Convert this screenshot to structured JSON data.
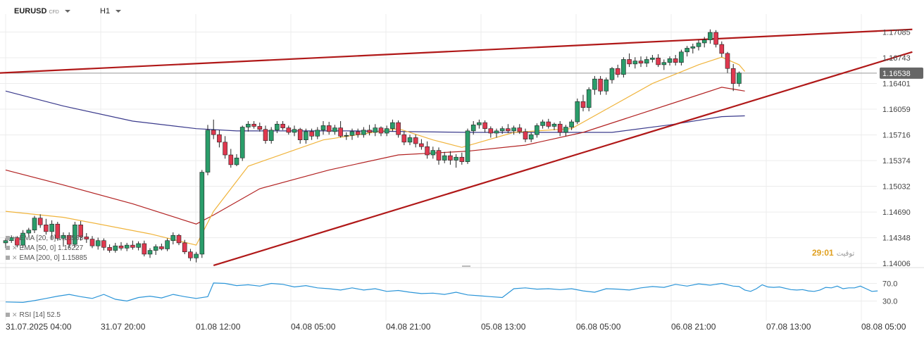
{
  "header": {
    "symbol": "EURUSD",
    "type": "CFD",
    "timeframe": "H1"
  },
  "indicators": [
    {
      "label": "EMA [20, 0] 1.16563",
      "color": "#f0b43c"
    },
    {
      "label": "EMA [50, 0] 1.16227",
      "color": "#b22222"
    },
    {
      "label": "EMA [200, 0] 1.15885",
      "color": "#3a3a8c"
    }
  ],
  "rsi_label": "RSI [14] 52.5",
  "session": {
    "value": "29",
    "sep": ":",
    "value2": "01",
    "suffix": "توقيت"
  },
  "colors": {
    "up": "#2a9d6a",
    "down": "#e0384f",
    "trend": "#b01818",
    "rsi": "#2b95d8",
    "grid": "#ececec"
  },
  "chart_data": {
    "type": "candlestick",
    "price_axis": {
      "ticks": [
        "1.17085",
        "1.16743",
        "1.16401",
        "1.16059",
        "1.15716",
        "1.15374",
        "1.15032",
        "1.14690",
        "1.14348",
        "1.14006"
      ],
      "range": [
        1.1397,
        1.1723
      ]
    },
    "current_price": "1.16538",
    "rsi_axis": {
      "ticks": [
        "70.0",
        "30.0"
      ],
      "range": [
        10,
        90
      ]
    },
    "time_labels": [
      "31.07.2025  04:00",
      "31.07  20:00",
      "01.08  12:00",
      "04.08  05:00",
      "04.08  21:00",
      "05.08  13:00",
      "06.08  05:00",
      "06.08  21:00",
      "07.08  13:00",
      "08.08  05:00"
    ],
    "candles": [
      [
        1.1428,
        1.1434,
        1.1421,
        1.1431
      ],
      [
        1.1431,
        1.1438,
        1.1428,
        1.1435
      ],
      [
        1.1435,
        1.1437,
        1.1422,
        1.1425
      ],
      [
        1.1425,
        1.1445,
        1.1421,
        1.1441
      ],
      [
        1.1441,
        1.1448,
        1.1438,
        1.1445
      ],
      [
        1.1445,
        1.1464,
        1.1441,
        1.1461
      ],
      [
        1.1461,
        1.1466,
        1.1448,
        1.1452
      ],
      [
        1.1452,
        1.146,
        1.1439,
        1.1443
      ],
      [
        1.1443,
        1.1458,
        1.1433,
        1.1453
      ],
      [
        1.1453,
        1.1456,
        1.1431,
        1.1434
      ],
      [
        1.1434,
        1.1442,
        1.1423,
        1.1438
      ],
      [
        1.1438,
        1.1442,
        1.1421,
        1.1426
      ],
      [
        1.1426,
        1.1456,
        1.1422,
        1.1452
      ],
      [
        1.1452,
        1.1457,
        1.1431,
        1.1436
      ],
      [
        1.1436,
        1.1441,
        1.1428,
        1.1433
      ],
      [
        1.1433,
        1.1437,
        1.1421,
        1.1424
      ],
      [
        1.1424,
        1.1435,
        1.1419,
        1.1431
      ],
      [
        1.1431,
        1.1434,
        1.1418,
        1.1422
      ],
      [
        1.1422,
        1.1426,
        1.1415,
        1.1418
      ],
      [
        1.1418,
        1.1428,
        1.1415,
        1.1424
      ],
      [
        1.1424,
        1.1429,
        1.1418,
        1.1421
      ],
      [
        1.1421,
        1.1428,
        1.1417,
        1.1425
      ],
      [
        1.1425,
        1.1431,
        1.1419,
        1.1422
      ],
      [
        1.1422,
        1.143,
        1.1418,
        1.1427
      ],
      [
        1.1427,
        1.1431,
        1.141,
        1.1413
      ],
      [
        1.1413,
        1.1421,
        1.1408,
        1.1418
      ],
      [
        1.1418,
        1.1426,
        1.1412,
        1.1423
      ],
      [
        1.1423,
        1.1427,
        1.1418,
        1.142
      ],
      [
        1.142,
        1.1434,
        1.1417,
        1.1431
      ],
      [
        1.1431,
        1.1442,
        1.1426,
        1.1438
      ],
      [
        1.1438,
        1.144,
        1.1425,
        1.1428
      ],
      [
        1.1428,
        1.1432,
        1.1413,
        1.1416
      ],
      [
        1.1416,
        1.142,
        1.1404,
        1.1408
      ],
      [
        1.1408,
        1.1416,
        1.1402,
        1.1413
      ],
      [
        1.1413,
        1.1525,
        1.1408,
        1.1522
      ],
      [
        1.1522,
        1.1585,
        1.1518,
        1.1578
      ],
      [
        1.1578,
        1.1592,
        1.1566,
        1.1572
      ],
      [
        1.1572,
        1.1578,
        1.1555,
        1.1562
      ],
      [
        1.1562,
        1.157,
        1.154,
        1.1545
      ],
      [
        1.1545,
        1.1553,
        1.1528,
        1.1532
      ],
      [
        1.1532,
        1.1546,
        1.153,
        1.1541
      ],
      [
        1.1541,
        1.1584,
        1.1537,
        1.1582
      ],
      [
        1.1582,
        1.159,
        1.1576,
        1.1586
      ],
      [
        1.1586,
        1.159,
        1.158,
        1.1583
      ],
      [
        1.1583,
        1.1588,
        1.1576,
        1.1579
      ],
      [
        1.1579,
        1.1584,
        1.156,
        1.1564
      ],
      [
        1.1564,
        1.1582,
        1.156,
        1.1578
      ],
      [
        1.1578,
        1.159,
        1.1574,
        1.1586
      ],
      [
        1.1586,
        1.159,
        1.1578,
        1.1581
      ],
      [
        1.1581,
        1.1584,
        1.1572,
        1.1575
      ],
      [
        1.1575,
        1.1584,
        1.157,
        1.1579
      ],
      [
        1.1579,
        1.1581,
        1.156,
        1.1565
      ],
      [
        1.1565,
        1.158,
        1.156,
        1.1576
      ],
      [
        1.1576,
        1.158,
        1.1565,
        1.157
      ],
      [
        1.157,
        1.1582,
        1.1566,
        1.1578
      ],
      [
        1.1578,
        1.159,
        1.1572,
        1.1584
      ],
      [
        1.1584,
        1.1589,
        1.1572,
        1.1576
      ],
      [
        1.1576,
        1.1585,
        1.1572,
        1.1581
      ],
      [
        1.1581,
        1.159,
        1.1568,
        1.157
      ],
      [
        1.157,
        1.1575,
        1.1565,
        1.1571
      ],
      [
        1.1571,
        1.158,
        1.1565,
        1.1576
      ],
      [
        1.1576,
        1.158,
        1.1568,
        1.1572
      ],
      [
        1.1572,
        1.1582,
        1.1568,
        1.1578
      ],
      [
        1.1578,
        1.1585,
        1.1571,
        1.1575
      ],
      [
        1.1575,
        1.1586,
        1.157,
        1.1581
      ],
      [
        1.1581,
        1.1583,
        1.157,
        1.1574
      ],
      [
        1.1574,
        1.1584,
        1.157,
        1.158
      ],
      [
        1.158,
        1.1592,
        1.1576,
        1.1588
      ],
      [
        1.1588,
        1.1591,
        1.1568,
        1.1572
      ],
      [
        1.1572,
        1.1576,
        1.1558,
        1.1562
      ],
      [
        1.1562,
        1.1572,
        1.1558,
        1.1568
      ],
      [
        1.1568,
        1.1572,
        1.1555,
        1.156
      ],
      [
        1.156,
        1.1566,
        1.1552,
        1.1556
      ],
      [
        1.1556,
        1.1563,
        1.154,
        1.1545
      ],
      [
        1.1545,
        1.1556,
        1.154,
        1.1551
      ],
      [
        1.1551,
        1.1555,
        1.1532,
        1.1538
      ],
      [
        1.1538,
        1.1549,
        1.1534,
        1.1544
      ],
      [
        1.1544,
        1.155,
        1.1532,
        1.1538
      ],
      [
        1.1538,
        1.1546,
        1.1528,
        1.1542
      ],
      [
        1.1542,
        1.1548,
        1.1532,
        1.1536
      ],
      [
        1.1536,
        1.158,
        1.1533,
        1.1577
      ],
      [
        1.1577,
        1.159,
        1.1572,
        1.1585
      ],
      [
        1.1585,
        1.1592,
        1.158,
        1.1588
      ],
      [
        1.1588,
        1.1591,
        1.1575,
        1.158
      ],
      [
        1.158,
        1.1583,
        1.1568,
        1.1574
      ],
      [
        1.1574,
        1.158,
        1.1568,
        1.1577
      ],
      [
        1.1577,
        1.1583,
        1.1573,
        1.158
      ],
      [
        1.158,
        1.1586,
        1.1574,
        1.1577
      ],
      [
        1.1577,
        1.1584,
        1.1572,
        1.1581
      ],
      [
        1.1581,
        1.1586,
        1.1573,
        1.1576
      ],
      [
        1.1576,
        1.158,
        1.1562,
        1.1566
      ],
      [
        1.1566,
        1.1575,
        1.1562,
        1.1572
      ],
      [
        1.1572,
        1.1587,
        1.1568,
        1.1584
      ],
      [
        1.1584,
        1.1592,
        1.158,
        1.1589
      ],
      [
        1.1589,
        1.1593,
        1.158,
        1.1583
      ],
      [
        1.1583,
        1.1588,
        1.1578,
        1.1586
      ],
      [
        1.1586,
        1.159,
        1.157,
        1.1575
      ],
      [
        1.1575,
        1.1585,
        1.157,
        1.1582
      ],
      [
        1.1582,
        1.1592,
        1.1578,
        1.1589
      ],
      [
        1.1589,
        1.162,
        1.1586,
        1.1616
      ],
      [
        1.1616,
        1.1625,
        1.1603,
        1.1608
      ],
      [
        1.1608,
        1.1635,
        1.1603,
        1.1632
      ],
      [
        1.1632,
        1.165,
        1.1625,
        1.1646
      ],
      [
        1.1646,
        1.165,
        1.1625,
        1.163
      ],
      [
        1.163,
        1.1648,
        1.1625,
        1.1645
      ],
      [
        1.1645,
        1.1662,
        1.164,
        1.166
      ],
      [
        1.166,
        1.1665,
        1.1648,
        1.1652
      ],
      [
        1.1652,
        1.1675,
        1.1648,
        1.1672
      ],
      [
        1.1672,
        1.168,
        1.1662,
        1.1666
      ],
      [
        1.1666,
        1.1675,
        1.166,
        1.167
      ],
      [
        1.167,
        1.1676,
        1.1662,
        1.1667
      ],
      [
        1.1667,
        1.1676,
        1.1662,
        1.1672
      ],
      [
        1.1672,
        1.1678,
        1.1668,
        1.1674
      ],
      [
        1.1674,
        1.1679,
        1.1662,
        1.1665
      ],
      [
        1.1665,
        1.1672,
        1.1658,
        1.1668
      ],
      [
        1.1668,
        1.1676,
        1.1664,
        1.1673
      ],
      [
        1.1673,
        1.1678,
        1.1664,
        1.1668
      ],
      [
        1.1668,
        1.1685,
        1.1664,
        1.1682
      ],
      [
        1.1682,
        1.169,
        1.1676,
        1.1687
      ],
      [
        1.1687,
        1.1693,
        1.168,
        1.1689
      ],
      [
        1.1689,
        1.1698,
        1.1684,
        1.1694
      ],
      [
        1.1694,
        1.1702,
        1.1688,
        1.1698
      ],
      [
        1.1698,
        1.1712,
        1.1693,
        1.1708
      ],
      [
        1.1708,
        1.1711,
        1.1688,
        1.1692
      ],
      [
        1.1692,
        1.1696,
        1.1675,
        1.168
      ],
      [
        1.168,
        1.1682,
        1.1654,
        1.166
      ],
      [
        1.166,
        1.1666,
        1.163,
        1.164
      ],
      [
        1.164,
        1.1656,
        1.1636,
        1.1654
      ]
    ],
    "ema20": [
      [
        0,
        1.147
      ],
      [
        10,
        1.1462
      ],
      [
        25,
        1.144
      ],
      [
        33,
        1.1425
      ],
      [
        36,
        1.147
      ],
      [
        42,
        1.153
      ],
      [
        55,
        1.1565
      ],
      [
        68,
        1.158
      ],
      [
        74,
        1.1565
      ],
      [
        79,
        1.1555
      ],
      [
        88,
        1.1575
      ],
      [
        98,
        1.158
      ],
      [
        105,
        1.161
      ],
      [
        112,
        1.164
      ],
      [
        120,
        1.1665
      ],
      [
        124,
        1.1675
      ],
      [
        127,
        1.1665
      ],
      [
        128,
        1.1656
      ]
    ],
    "ema50": [
      [
        0,
        1.1525
      ],
      [
        10,
        1.1505
      ],
      [
        22,
        1.148
      ],
      [
        33,
        1.1453
      ],
      [
        36,
        1.1465
      ],
      [
        44,
        1.15
      ],
      [
        56,
        1.1525
      ],
      [
        68,
        1.1545
      ],
      [
        80,
        1.155
      ],
      [
        90,
        1.1558
      ],
      [
        100,
        1.1575
      ],
      [
        110,
        1.16
      ],
      [
        118,
        1.162
      ],
      [
        124,
        1.1635
      ],
      [
        128,
        1.163
      ]
    ],
    "ema200": [
      [
        0,
        1.163
      ],
      [
        10,
        1.161
      ],
      [
        22,
        1.159
      ],
      [
        33,
        1.158
      ],
      [
        40,
        1.1577
      ],
      [
        60,
        1.1577
      ],
      [
        80,
        1.1575
      ],
      [
        96,
        1.1575
      ],
      [
        105,
        1.1575
      ],
      [
        115,
        1.1585
      ],
      [
        124,
        1.1596
      ],
      [
        128,
        1.1597
      ]
    ],
    "trendlines": [
      {
        "from": [
          -1,
          1.1654
        ],
        "to": [
          157,
          1.1712
        ]
      },
      {
        "from": [
          36,
          1.1398
        ],
        "to": [
          157,
          1.1682
        ]
      }
    ],
    "rsi": [
      [
        0,
        28
      ],
      [
        3,
        27
      ],
      [
        5,
        31
      ],
      [
        7,
        36
      ],
      [
        9,
        41
      ],
      [
        11,
        45
      ],
      [
        13,
        40
      ],
      [
        15,
        36
      ],
      [
        17,
        45
      ],
      [
        19,
        34
      ],
      [
        21,
        30
      ],
      [
        23,
        38
      ],
      [
        25,
        41
      ],
      [
        27,
        37
      ],
      [
        29,
        45
      ],
      [
        31,
        40
      ],
      [
        33,
        36
      ],
      [
        35,
        40
      ],
      [
        36,
        71
      ],
      [
        38,
        70
      ],
      [
        40,
        65
      ],
      [
        42,
        67
      ],
      [
        44,
        64
      ],
      [
        46,
        70
      ],
      [
        48,
        68
      ],
      [
        50,
        62
      ],
      [
        52,
        65
      ],
      [
        54,
        60
      ],
      [
        56,
        58
      ],
      [
        58,
        55
      ],
      [
        60,
        60
      ],
      [
        62,
        55
      ],
      [
        64,
        58
      ],
      [
        66,
        52
      ],
      [
        68,
        54
      ],
      [
        70,
        50
      ],
      [
        72,
        47
      ],
      [
        74,
        48
      ],
      [
        76,
        45
      ],
      [
        78,
        50
      ],
      [
        80,
        44
      ],
      [
        82,
        42
      ],
      [
        84,
        40
      ],
      [
        86,
        38
      ],
      [
        88,
        58
      ],
      [
        90,
        60
      ],
      [
        92,
        57
      ],
      [
        94,
        58
      ],
      [
        96,
        56
      ],
      [
        98,
        58
      ],
      [
        100,
        53
      ],
      [
        102,
        50
      ],
      [
        104,
        58
      ],
      [
        106,
        57
      ],
      [
        108,
        55
      ],
      [
        110,
        60
      ],
      [
        112,
        63
      ],
      [
        114,
        61
      ],
      [
        116,
        68
      ],
      [
        118,
        64
      ],
      [
        120,
        69
      ],
      [
        122,
        66
      ],
      [
        124,
        70
      ],
      [
        126,
        64
      ],
      [
        127,
        63
      ],
      [
        128,
        55
      ],
      [
        129,
        52
      ],
      [
        130,
        58
      ],
      [
        131,
        67
      ],
      [
        132,
        62
      ],
      [
        133,
        61
      ],
      [
        134,
        62
      ],
      [
        136,
        56
      ],
      [
        137,
        55
      ],
      [
        138,
        56
      ],
      [
        139,
        53
      ],
      [
        140,
        52
      ],
      [
        141,
        55
      ],
      [
        142,
        61
      ],
      [
        143,
        60
      ],
      [
        144,
        64
      ],
      [
        145,
        58
      ],
      [
        146,
        60
      ],
      [
        147,
        60
      ],
      [
        148,
        64
      ],
      [
        149,
        58
      ],
      [
        150,
        52
      ],
      [
        151,
        53
      ]
    ]
  }
}
